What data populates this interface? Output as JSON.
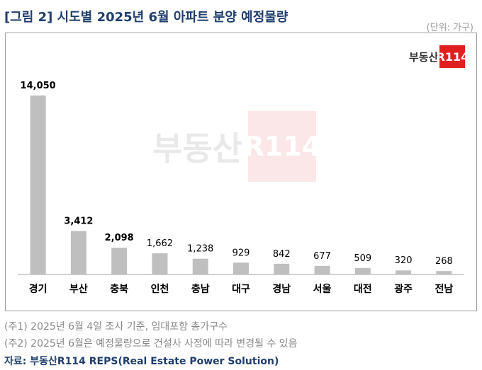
{
  "title": "[그림 2] 시도별 2025년 6월 아파트 분양 예정물량",
  "unit": "(단위: 가구)",
  "logo": {
    "text": "부동산",
    "badge": "R114"
  },
  "chart_data": {
    "type": "bar",
    "categories": [
      "경기",
      "부산",
      "충북",
      "인천",
      "충남",
      "대구",
      "경남",
      "서울",
      "대전",
      "광주",
      "전남"
    ],
    "values": [
      14050,
      3412,
      2098,
      1662,
      1238,
      929,
      842,
      677,
      509,
      320,
      268
    ],
    "value_labels": [
      "14,050",
      "3,412",
      "2,098",
      "1,662",
      "1,238",
      "929",
      "842",
      "677",
      "509",
      "320",
      "268"
    ],
    "bold_value_labels": [
      true,
      true,
      true,
      false,
      false,
      false,
      false,
      false,
      false,
      false,
      false
    ],
    "ylim": [
      0,
      14050
    ],
    "bar_color": "#bfbfbf",
    "grid": false,
    "legend": "none"
  },
  "notes": [
    "(주1) 2025년 6월 4일 조사 기준, 임대포함 총가구수",
    "(주2) 2025년 6월은 예정물량으로 건설사 사정에 따라 변경될 수 있음"
  ],
  "source": "자료: 부동산R114 REPS(Real Estate Power Solution)"
}
